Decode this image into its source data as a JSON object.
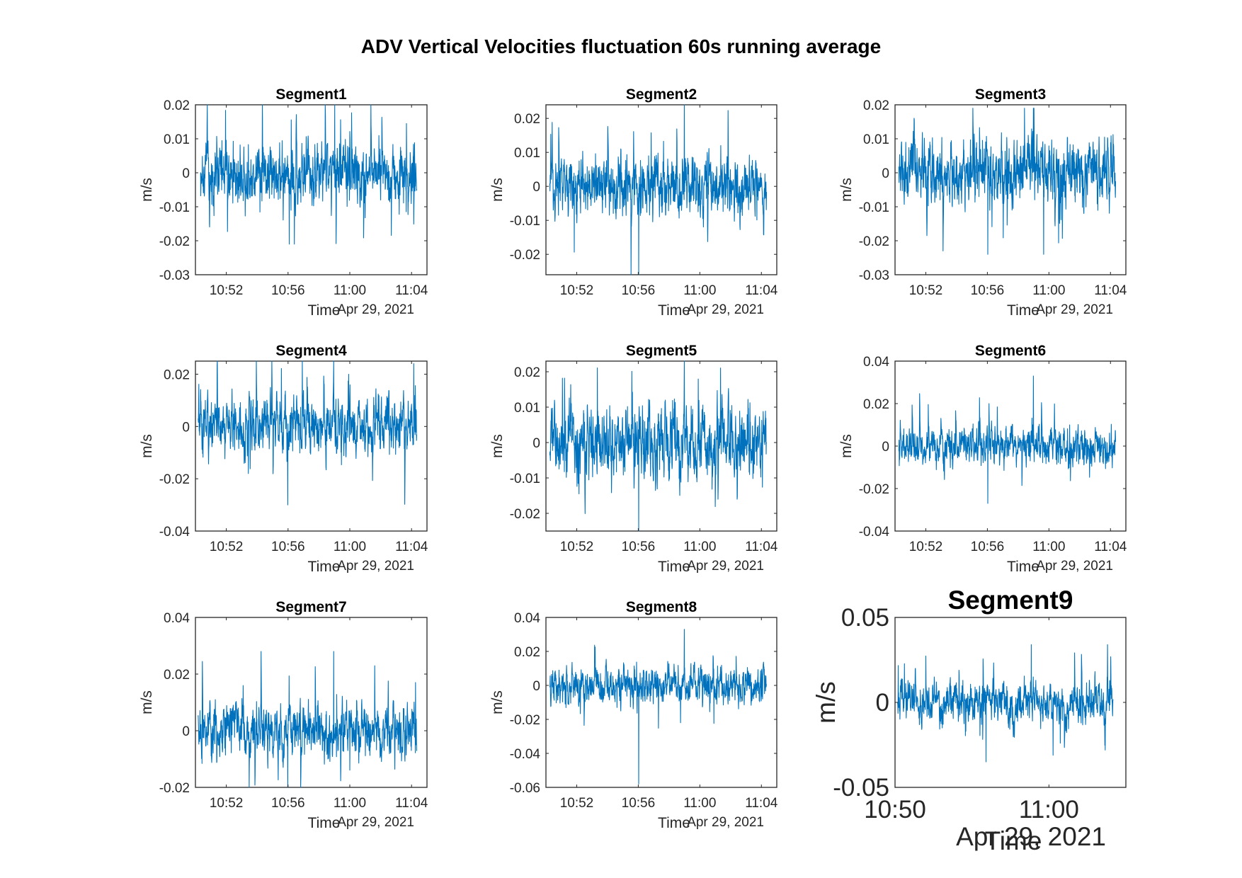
{
  "figure": {
    "suptitle": "ADV Vertical Velocities fluctuation 60s running average",
    "series_color": "#0072bd"
  },
  "chart_data": [
    {
      "type": "line",
      "title": "Segment1",
      "xlabel": "Time",
      "date_label": "Apr 29, 2021",
      "ylabel": "m/s",
      "xlim": [
        "10:50",
        "11:05"
      ],
      "ylim": [
        -0.03,
        0.02
      ],
      "yticks": [
        -0.03,
        -0.02,
        -0.01,
        0,
        0.01,
        0.02
      ],
      "yticklabels": [
        "-0.03",
        "-0.02",
        "-0.01",
        "0",
        "0.01",
        "0.02"
      ],
      "xticks": [
        "10:52",
        "10:56",
        "11:00",
        "11:04"
      ],
      "x_start": "10:50:20",
      "x_end": "11:04:20",
      "series": [
        {
          "mean": 0,
          "std": 0.0062,
          "max": 0.02,
          "min": -0.021
        }
      ]
    },
    {
      "type": "line",
      "title": "Segment2",
      "xlabel": "Time",
      "date_label": "Apr 29, 2021",
      "ylabel": "m/s",
      "xlim": [
        "10:50",
        "11:05"
      ],
      "ylim": [
        -0.026,
        0.024
      ],
      "yticks": [
        -0.02,
        -0.01,
        0,
        0.01,
        0.02
      ],
      "yticklabels": [
        "-0.02",
        "-0.01",
        "0",
        "0.01",
        "0.02"
      ],
      "xticks": [
        "10:52",
        "10:56",
        "11:00",
        "11:04"
      ],
      "x_start": "10:50:15",
      "x_end": "11:04:20",
      "series": [
        {
          "mean": 0,
          "std": 0.0058,
          "max": 0.024,
          "min": -0.026
        }
      ]
    },
    {
      "type": "line",
      "title": "Segment3",
      "xlabel": "Time",
      "date_label": "Apr 29, 2021",
      "ylabel": "m/s",
      "xlim": [
        "10:50",
        "11:05"
      ],
      "ylim": [
        -0.03,
        0.02
      ],
      "yticks": [
        -0.03,
        -0.02,
        -0.01,
        0,
        0.01,
        0.02
      ],
      "yticklabels": [
        "-0.03",
        "-0.02",
        "-0.01",
        "0",
        "0.01",
        "0.02"
      ],
      "xticks": [
        "10:52",
        "10:56",
        "11:00",
        "11:04"
      ],
      "x_start": "10:50:15",
      "x_end": "11:04:20",
      "series": [
        {
          "mean": 0,
          "std": 0.0064,
          "max": 0.019,
          "min": -0.024
        }
      ]
    },
    {
      "type": "line",
      "title": "Segment4",
      "xlabel": "Time",
      "date_label": "Apr 29, 2021",
      "ylabel": "m/s",
      "xlim": [
        "10:50",
        "11:05"
      ],
      "ylim": [
        -0.04,
        0.025
      ],
      "yticks": [
        -0.04,
        -0.02,
        0,
        0.02
      ],
      "yticklabels": [
        "-0.04",
        "-0.02",
        "0",
        "0.02"
      ],
      "xticks": [
        "10:52",
        "10:56",
        "11:00",
        "11:04"
      ],
      "x_start": "10:50:10",
      "x_end": "11:04:20",
      "series": [
        {
          "mean": 0,
          "std": 0.0072,
          "max": 0.025,
          "min": -0.03
        }
      ]
    },
    {
      "type": "line",
      "title": "Segment5",
      "xlabel": "Time",
      "date_label": "Apr 29, 2021",
      "ylabel": "m/s",
      "xlim": [
        "10:50",
        "11:05"
      ],
      "ylim": [
        -0.025,
        0.023
      ],
      "yticks": [
        -0.02,
        -0.01,
        0,
        0.01,
        0.02
      ],
      "yticklabels": [
        "-0.02",
        "-0.01",
        "0",
        "0.01",
        "0.02"
      ],
      "xticks": [
        "10:52",
        "10:56",
        "11:00",
        "11:04"
      ],
      "x_start": "10:50:15",
      "x_end": "11:04:20",
      "series": [
        {
          "mean": 0,
          "std": 0.0066,
          "max": 0.023,
          "min": -0.025
        }
      ]
    },
    {
      "type": "line",
      "title": "Segment6",
      "xlabel": "Time",
      "date_label": "Apr 29, 2021",
      "ylabel": "m/s",
      "xlim": [
        "10:50",
        "11:05"
      ],
      "ylim": [
        -0.04,
        0.04
      ],
      "yticks": [
        -0.04,
        -0.02,
        0,
        0.02,
        0.04
      ],
      "yticklabels": [
        "-0.04",
        "-0.02",
        "0",
        "0.02",
        "0.04"
      ],
      "xticks": [
        "10:52",
        "10:56",
        "11:00",
        "11:04"
      ],
      "x_start": "10:50:15",
      "x_end": "11:04:20",
      "series": [
        {
          "mean": 0,
          "std": 0.006,
          "max": 0.033,
          "min": -0.027
        }
      ]
    },
    {
      "type": "line",
      "title": "Segment7",
      "xlabel": "Time",
      "date_label": "Apr 29, 2021",
      "ylabel": "m/s",
      "xlim": [
        "10:50",
        "11:05"
      ],
      "ylim": [
        -0.02,
        0.04
      ],
      "yticks": [
        -0.02,
        0,
        0.02,
        0.04
      ],
      "yticklabels": [
        "-0.02",
        "0",
        "0.02",
        "0.04"
      ],
      "xticks": [
        "10:52",
        "10:56",
        "11:00",
        "11:04"
      ],
      "x_start": "10:50:10",
      "x_end": "11:04:20",
      "series": [
        {
          "mean": 0,
          "std": 0.0063,
          "max": 0.028,
          "min": -0.02
        }
      ]
    },
    {
      "type": "line",
      "title": "Segment8",
      "xlabel": "Time",
      "date_label": "Apr 29, 2021",
      "ylabel": "m/s",
      "xlim": [
        "10:50",
        "11:05"
      ],
      "ylim": [
        -0.06,
        0.04
      ],
      "yticks": [
        -0.06,
        -0.04,
        -0.02,
        0,
        0.02,
        0.04
      ],
      "yticklabels": [
        "-0.06",
        "-0.04",
        "-0.02",
        "0",
        "0.02",
        "0.04"
      ],
      "xticks": [
        "10:52",
        "10:56",
        "11:00",
        "11:04"
      ],
      "x_start": "10:50:15",
      "x_end": "11:04:20",
      "series": [
        {
          "mean": 0,
          "std": 0.0075,
          "max": 0.033,
          "min": -0.058
        }
      ]
    },
    {
      "type": "line",
      "title": "Segment9",
      "xlabel": "Time",
      "date_label": "Apr 29, 2021",
      "ylabel": "m/s",
      "xlim": [
        "10:50",
        "11:05"
      ],
      "ylim": [
        -0.05,
        0.05
      ],
      "yticks": [
        -0.05,
        0,
        0.05
      ],
      "yticklabels": [
        "-0.05",
        "0",
        "0.05"
      ],
      "xticks": [
        "10:50",
        "11:00"
      ],
      "x_start": "10:50:10",
      "x_end": "11:04:10",
      "series": [
        {
          "mean": 0,
          "std": 0.008,
          "max": 0.034,
          "min": -0.035
        }
      ]
    }
  ]
}
